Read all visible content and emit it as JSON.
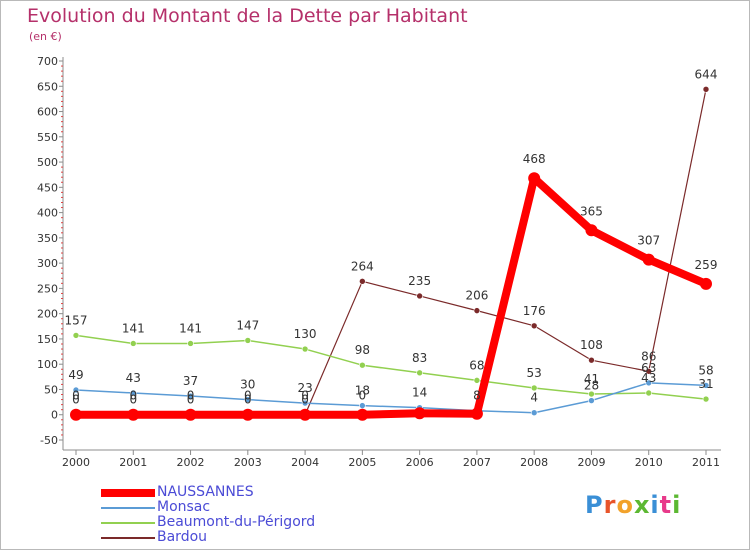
{
  "header": {
    "title": "Evolution du Montant de la Dette par Habitant",
    "subtitle": "(en €)"
  },
  "logo": {
    "text": "Proxiti",
    "colors": [
      "#3a8fd6",
      "#e8542a",
      "#f2a22b",
      "#5cb832",
      "#3a8fd6",
      "#e83a8a",
      "#5cb832"
    ]
  },
  "chart_data": {
    "type": "line",
    "title": "Evolution du Montant de la Dette par Habitant",
    "subtitle": "(en €)",
    "x": [
      "2000",
      "2001",
      "2002",
      "2003",
      "2004",
      "2005",
      "2006",
      "2007",
      "2008",
      "2009",
      "2010",
      "2011"
    ],
    "y_ticks": [
      "-50",
      "0",
      "50",
      "100",
      "150",
      "200",
      "250",
      "300",
      "350",
      "400",
      "450",
      "500",
      "550",
      "600",
      "650",
      "700"
    ],
    "ylim": [
      -50,
      700
    ],
    "grid": false,
    "legend_position": "bottom-left",
    "series": [
      {
        "name": "NAUSSANNES",
        "color": "#ff0000",
        "values": [
          0,
          0,
          0,
          0,
          0,
          0,
          3,
          2,
          468,
          365,
          307,
          259
        ],
        "labels": [
          "0",
          "0",
          "0",
          "0",
          "0",
          "0",
          "",
          "",
          "468",
          "365",
          "307",
          "259"
        ]
      },
      {
        "name": "Monsac",
        "color": "#5b9bd5",
        "values": [
          49,
          43,
          37,
          30,
          23,
          18,
          14,
          8,
          4,
          28,
          63,
          58
        ],
        "labels": [
          "49",
          "43",
          "37",
          "30",
          "23",
          "18",
          "14",
          "8",
          "4",
          "28",
          "63",
          "58"
        ]
      },
      {
        "name": "Beaumont-du-Périgord",
        "color": "#92d050",
        "values": [
          157,
          141,
          141,
          147,
          130,
          98,
          83,
          68,
          53,
          41,
          43,
          31
        ],
        "labels": [
          "157",
          "141",
          "141",
          "147",
          "130",
          "98",
          "83",
          "68",
          "53",
          "41",
          "43",
          "31"
        ]
      },
      {
        "name": "Bardou",
        "color": "#7b2a2a",
        "values": [
          0,
          0,
          0,
          0,
          0,
          264,
          235,
          206,
          176,
          108,
          86,
          644
        ],
        "labels": [
          "0",
          "0",
          "0",
          "0",
          "0",
          "264",
          "235",
          "206",
          "176",
          "108",
          "86",
          "644"
        ]
      }
    ]
  }
}
